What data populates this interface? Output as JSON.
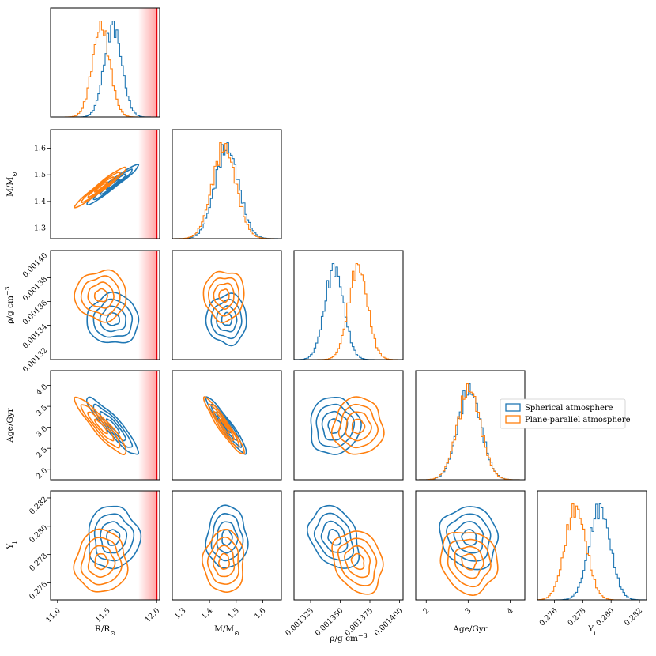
{
  "chart_data": {
    "type": "corner",
    "parameters": [
      {
        "key": "R",
        "label": "R/R",
        "label_sub": "⊙",
        "range": [
          10.93,
          12.03
        ],
        "ticks": [
          11.0,
          11.5,
          12.0
        ],
        "tick_labels": [
          "11.0",
          "11.5",
          "12.0"
        ]
      },
      {
        "key": "M",
        "label": "M/M",
        "label_sub": "⊙",
        "range": [
          1.26,
          1.67
        ],
        "ticks": [
          1.3,
          1.4,
          1.5,
          1.6
        ],
        "tick_labels": [
          "1.3",
          "1.4",
          "1.5",
          "1.6"
        ]
      },
      {
        "key": "rho",
        "label": "ρ/g cm",
        "label_sup": "−3",
        "range": [
          0.001311,
          0.001403
        ],
        "ticks": [
          0.001325,
          0.00135,
          0.001375,
          0.0014
        ],
        "tick_labels": [
          "0.001325",
          "0.001350",
          "0.001375",
          "0.001400"
        ],
        "y_ticks": [
          0.00132,
          0.00134,
          0.00136,
          0.00138,
          0.0014
        ],
        "y_tick_labels": [
          "0.00132",
          "0.00134",
          "0.00136",
          "0.00138",
          "0.00140"
        ]
      },
      {
        "key": "age",
        "label": "Age/Gyr",
        "range": [
          1.75,
          4.35
        ],
        "ticks": [
          2,
          3,
          4
        ],
        "tick_labels": [
          "2",
          "3",
          "4"
        ],
        "y_ticks": [
          2.0,
          2.5,
          3.0,
          3.5,
          4.0
        ],
        "y_tick_labels": [
          "2.0",
          "2.5",
          "3.0",
          "3.5",
          "4.0"
        ]
      },
      {
        "key": "Yi",
        "label": "Y",
        "label_sub": "i",
        "range": [
          0.2748,
          0.2825
        ],
        "ticks": [
          0.276,
          0.278,
          0.28,
          0.282
        ],
        "tick_labels": [
          "0.276",
          "0.278",
          "0.280",
          "0.282"
        ]
      }
    ],
    "series": [
      {
        "name": "Spherical atmosphere",
        "color": "#1f77b4",
        "mean": [
          11.56,
          1.465,
          0.001345,
          3.03,
          0.2792
        ],
        "sd": [
          0.088,
          0.045,
          8e-06,
          0.28,
          0.00075
        ],
        "contour_sd": [
          0.13,
          0.038,
          1.05e-05,
          0.34,
          0.0011
        ],
        "corr": {
          "R-M": 0.97,
          "R-age": -0.92,
          "M-age": -0.95,
          "rho-Yi": -0.3,
          "age-Yi": -0.1,
          "R-rho": 0.0,
          "M-rho": 0.0,
          "rho-age": 0.0,
          "R-Yi": 0.0,
          "M-Yi": 0.0
        }
      },
      {
        "name": "Plane-parallel atmosphere",
        "color": "#ff7f0e",
        "mean": [
          11.44,
          1.455,
          0.001365,
          3.02,
          0.2775
        ],
        "sd": [
          0.088,
          0.045,
          8e-06,
          0.28,
          0.00075
        ],
        "contour_sd": [
          0.13,
          0.038,
          1.05e-05,
          0.34,
          0.0011
        ],
        "corr": {
          "R-M": 0.97,
          "R-age": -0.92,
          "M-age": -0.95,
          "rho-Yi": -0.2,
          "age-Yi": -0.1,
          "R-rho": 0.0,
          "M-rho": 0.0,
          "rho-age": 0.0,
          "R-Yi": 0.0,
          "M-Yi": 0.0
        }
      }
    ],
    "contour_levels_sigma": [
      0.5,
      1.0,
      1.5,
      2.0
    ],
    "radius_limit": {
      "value": 12.0,
      "shade_from": 11.82,
      "color": "#e8000b",
      "applies_to_column": "R"
    },
    "legend": {
      "entries": [
        "Spherical atmosphere",
        "Plane-parallel atmosphere"
      ],
      "placement": "right-of-age-histogram"
    }
  }
}
